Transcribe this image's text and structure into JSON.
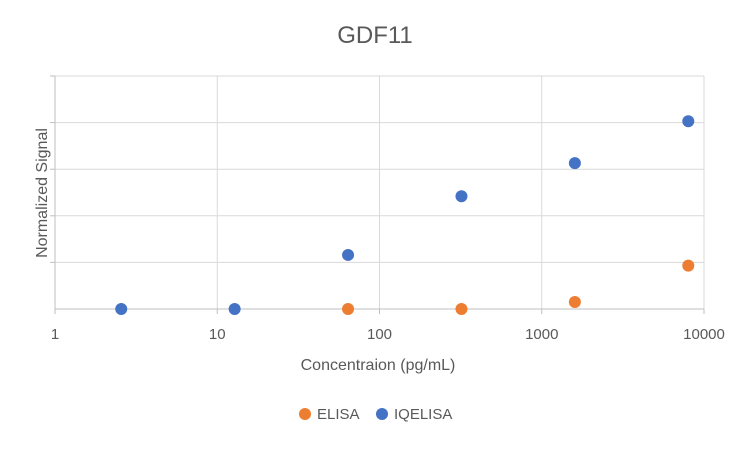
{
  "chart_data": {
    "type": "scatter",
    "title": "GDF11",
    "xlabel": "Concentraion (pg/mL)",
    "ylabel": "Normalized Signal",
    "xscale": "log",
    "xlim": [
      1,
      10000
    ],
    "ylim": [
      0,
      5
    ],
    "x_ticks": [
      1,
      10,
      100,
      1000,
      10000
    ],
    "x_tick_labels": [
      "1",
      "10",
      "100",
      "1000",
      "10000"
    ],
    "y_ticks": [
      0,
      1,
      2,
      3,
      4,
      5
    ],
    "y_tick_labels_shown": false,
    "grid": true,
    "legend_position": "bottom",
    "series": [
      {
        "name": "ELISA",
        "color": "#ED7D31",
        "x": [
          64,
          320,
          1600,
          8000
        ],
        "y": [
          0,
          0,
          0.15,
          0.93
        ]
      },
      {
        "name": "IQELISA",
        "color": "#4472C4",
        "x": [
          2.56,
          12.8,
          64,
          320,
          1600,
          8000
        ],
        "y": [
          0,
          0,
          1.16,
          2.42,
          3.13,
          4.03
        ]
      }
    ]
  }
}
